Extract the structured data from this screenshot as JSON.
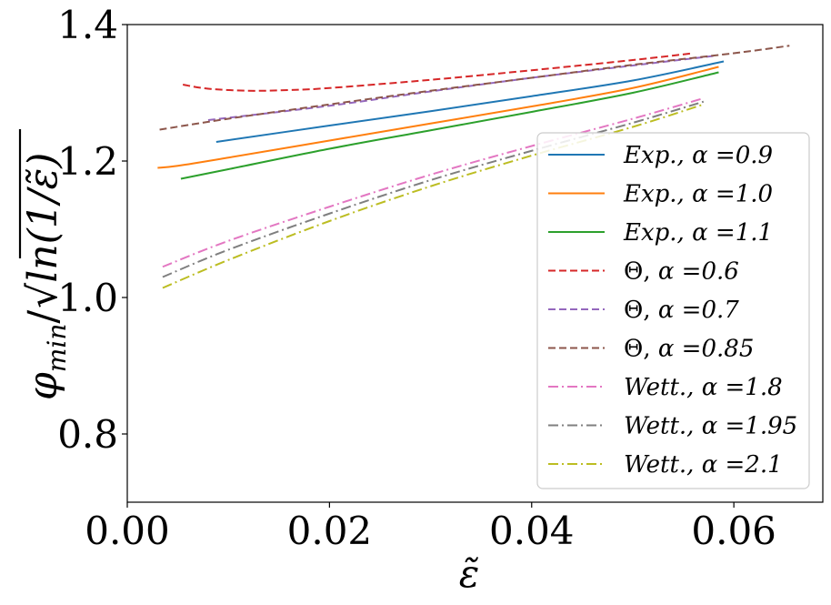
{
  "chart_data": {
    "type": "line",
    "title": "",
    "xlabel": "ε̃",
    "ylabel": "φ_min/√ln(1/ε̃)",
    "ylabel_parts": {
      "symbol": "φ",
      "subscript": "min",
      "divider": "/",
      "radicand": "ln(1/ε̃)"
    },
    "xlim": [
      0.0,
      0.0688
    ],
    "ylim": [
      0.7,
      1.4
    ],
    "xticks": [
      0.0,
      0.02,
      0.04,
      0.06
    ],
    "xtick_labels": [
      "0.00",
      "0.02",
      "0.04",
      "0.06"
    ],
    "yticks": [
      0.8,
      1.0,
      1.2,
      1.4
    ],
    "ytick_labels": [
      "0.8",
      "1.0",
      "1.2",
      "1.4"
    ],
    "grid": false,
    "legend_position": "center-right",
    "series": [
      {
        "name": "Exp., α =0.9",
        "label_prefix": "Exp.",
        "alpha_text": "α =0.9",
        "color": "#1f77b4",
        "dash": "solid",
        "x": [
          0.0088,
          0.02,
          0.03,
          0.04,
          0.05,
          0.059
        ],
        "y": [
          1.228,
          1.252,
          1.273,
          1.295,
          1.318,
          1.346
        ]
      },
      {
        "name": "Exp., α =1.0",
        "label_prefix": "Exp.",
        "alpha_text": "α =1.0",
        "color": "#ff7f0e",
        "dash": "solid",
        "x": [
          0.003,
          0.005,
          0.01,
          0.02,
          0.03,
          0.04,
          0.05,
          0.0585
        ],
        "y": [
          1.19,
          1.193,
          1.205,
          1.23,
          1.255,
          1.28,
          1.307,
          1.338
        ]
      },
      {
        "name": "Exp., α =1.1",
        "label_prefix": "Exp.",
        "alpha_text": "α =1.1",
        "color": "#2ca02c",
        "dash": "solid",
        "x": [
          0.0053,
          0.01,
          0.02,
          0.03,
          0.04,
          0.05,
          0.0585
        ],
        "y": [
          1.174,
          1.188,
          1.218,
          1.245,
          1.272,
          1.3,
          1.33
        ]
      },
      {
        "name": "Θ, α =0.6",
        "label_prefix": "Θ",
        "alpha_text": "α =0.6",
        "color": "#d62728",
        "dash": "dashed",
        "x": [
          0.0055,
          0.008,
          0.012,
          0.016,
          0.02,
          0.03,
          0.04,
          0.05,
          0.056
        ],
        "y": [
          1.312,
          1.306,
          1.303,
          1.304,
          1.307,
          1.319,
          1.333,
          1.348,
          1.358
        ]
      },
      {
        "name": "Θ, α =0.7",
        "label_prefix": "Θ",
        "alpha_text": "α =0.7",
        "color": "#9467bd",
        "dash": "dashed",
        "x": [
          0.008,
          0.02,
          0.03,
          0.04,
          0.05,
          0.058
        ],
        "y": [
          1.26,
          1.281,
          1.302,
          1.322,
          1.34,
          1.354
        ]
      },
      {
        "name": "Θ, α =0.85",
        "label_prefix": "Θ",
        "alpha_text": "α =0.85",
        "color": "#8c564b",
        "dash": "dashed",
        "x": [
          0.0032,
          0.01,
          0.02,
          0.03,
          0.04,
          0.05,
          0.06,
          0.0655
        ],
        "y": [
          1.246,
          1.262,
          1.283,
          1.303,
          1.322,
          1.341,
          1.358,
          1.369
        ]
      },
      {
        "name": "Wett., α =1.8",
        "label_prefix": "Wett.",
        "alpha_text": "α =1.8",
        "color": "#e377c2",
        "dash": "dashdot",
        "x": [
          0.0035,
          0.01,
          0.02,
          0.03,
          0.04,
          0.05,
          0.057
        ],
        "y": [
          1.045,
          1.083,
          1.133,
          1.18,
          1.222,
          1.262,
          1.292
        ]
      },
      {
        "name": "Wett., α =1.95",
        "label_prefix": "Wett.",
        "alpha_text": "α =1.95",
        "color": "#7f7f7f",
        "dash": "dashdot",
        "x": [
          0.0035,
          0.01,
          0.02,
          0.03,
          0.04,
          0.05,
          0.057
        ],
        "y": [
          1.03,
          1.07,
          1.123,
          1.172,
          1.215,
          1.256,
          1.287
        ]
      },
      {
        "name": "Wett., α =2.1",
        "label_prefix": "Wett.",
        "alpha_text": "α =2.1",
        "color": "#bcbd22",
        "dash": "dashdot",
        "x": [
          0.0035,
          0.01,
          0.02,
          0.03,
          0.04,
          0.05,
          0.057
        ],
        "y": [
          1.014,
          1.055,
          1.112,
          1.163,
          1.208,
          1.25,
          1.283
        ]
      }
    ]
  }
}
